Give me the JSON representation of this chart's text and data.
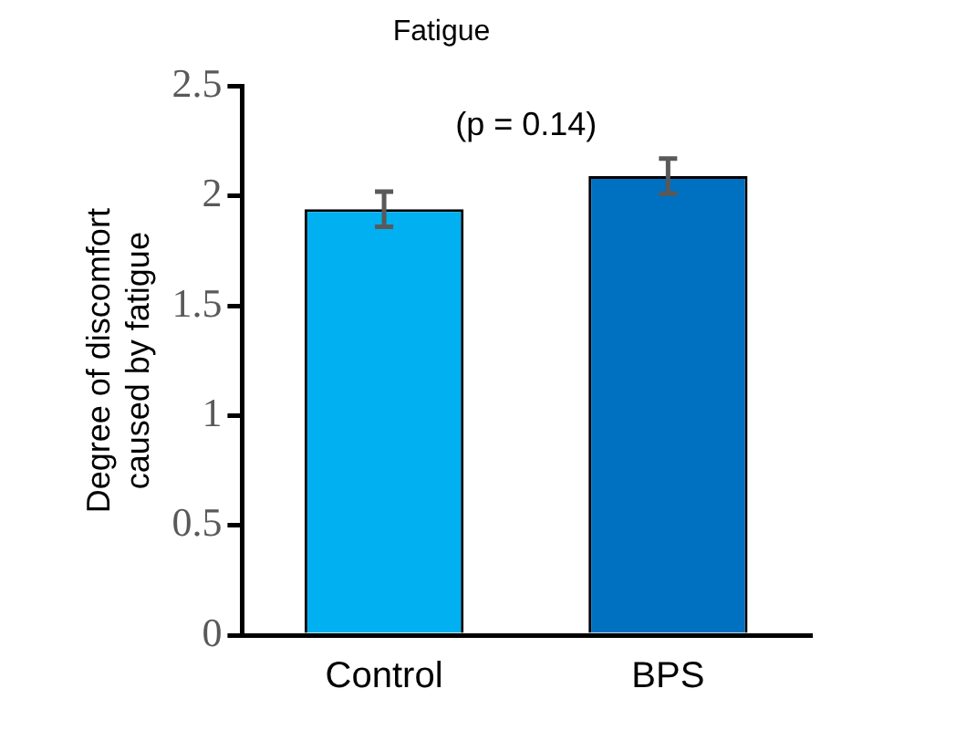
{
  "chart_data": {
    "type": "bar",
    "title": "Fatigue",
    "ylabel": "Degree of discomfort caused by fatigue",
    "categories": [
      "Control",
      "BPS"
    ],
    "values": [
      1.94,
      2.09
    ],
    "colors": [
      "#00b0f0",
      "#0070c0"
    ],
    "errors": [
      0.08,
      0.08
    ],
    "ylim": [
      0,
      2.5
    ],
    "yticks": [
      0,
      0.5,
      1,
      1.5,
      2,
      2.5
    ],
    "grid": false,
    "legend": false,
    "annotations": [
      "(p = 0.14)"
    ]
  }
}
